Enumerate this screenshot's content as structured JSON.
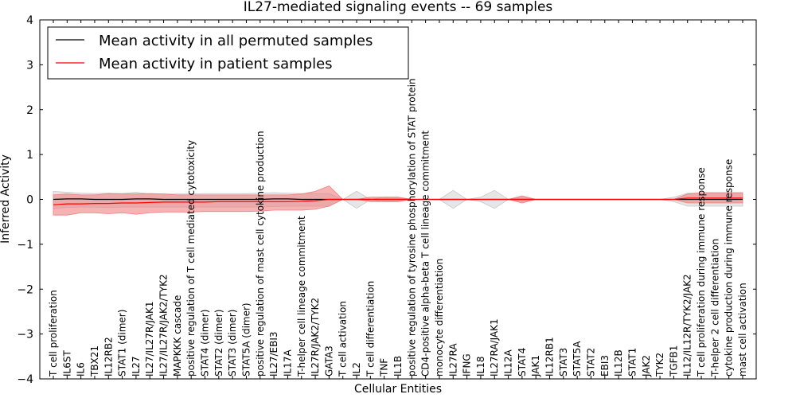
{
  "chart_data": {
    "type": "line",
    "title": "IL27-mediated signaling events -- 69 samples",
    "xlabel": "Cellular Entities",
    "ylabel": "Inferred Activity",
    "ylim": [
      -4,
      4
    ],
    "yticks": [
      -4,
      -3,
      -2,
      -1,
      0,
      1,
      2,
      3,
      4
    ],
    "ytick_labels": [
      "−4",
      "−3",
      "−2",
      "−1",
      "0",
      "1",
      "2",
      "3",
      "4"
    ],
    "legend_position": "top-left",
    "categories": [
      "T cell proliferation",
      "IL6ST",
      "IL6",
      "TBX21",
      "IL12RB2",
      "STAT1 (dimer)",
      "IL27",
      "IL27/IL27R/JAK1",
      "IL27/IL27R/JAK2/TYK2",
      "MAPKKK cascade",
      "positive regulation of T cell mediated cytotoxicity",
      "STAT4 (dimer)",
      "STAT2 (dimer)",
      "STAT3 (dimer)",
      "STAT5A (dimer)",
      "positive regulation of mast cell cytokine production",
      "IL27/EBI3",
      "IL17A",
      "T-helper cell lineage commitment",
      "IL27R/JAK2/TYK2",
      "GATA3",
      "T cell activation",
      "IL2",
      "T cell differentiation",
      "TNF",
      "IL1B",
      "positive regulation of tyrosine phosphorylation of STAT protein",
      "CD4-positive alpha-beta T cell lineage commitment",
      "monocyte differentiation",
      "IL27RA",
      "IFNG",
      "IL18",
      "IL27RA/JAK1",
      "IL12A",
      "STAT4",
      "JAK1",
      "IL12RB1",
      "STAT3",
      "STAT5A",
      "STAT2",
      "EBI3",
      "IL12B",
      "STAT1",
      "JAK2",
      "TYK2",
      "TGFB1",
      "IL12/IL12R/TYK2/JAK2",
      "T cell proliferation during immune response",
      "T-helper 2 cell differentiation",
      "cytokine production during immune response",
      "mast cell activation"
    ],
    "series": [
      {
        "name": "Mean activity in all permuted samples",
        "color": "#000000",
        "band_color": "#c8c8c8",
        "values": [
          0.0,
          0.01,
          0.01,
          0.0,
          0.0,
          0.0,
          0.01,
          0.01,
          0.0,
          0.0,
          0.0,
          0.0,
          0.0,
          0.0,
          0.0,
          0.0,
          0.01,
          0.01,
          0.0,
          0.0,
          0.0,
          0.0,
          0.0,
          0.0,
          0.0,
          0.0,
          0.0,
          0.0,
          0.0,
          0.0,
          0.0,
          0.0,
          0.0,
          0.0,
          0.0,
          0.0,
          0.0,
          0.0,
          0.0,
          0.0,
          0.0,
          0.0,
          0.0,
          0.0,
          0.0,
          0.0,
          0.0,
          0.0,
          0.0,
          0.0,
          0.0
        ],
        "lower": [
          -0.2,
          -0.18,
          -0.17,
          -0.17,
          -0.18,
          -0.17,
          -0.17,
          -0.17,
          -0.17,
          -0.17,
          -0.17,
          -0.17,
          -0.17,
          -0.17,
          -0.17,
          -0.17,
          -0.16,
          -0.15,
          -0.15,
          -0.15,
          -0.15,
          0.0,
          -0.2,
          0.0,
          -0.05,
          -0.05,
          0.0,
          0.0,
          0.0,
          -0.2,
          0.0,
          -0.05,
          -0.2,
          0.0,
          -0.05,
          0.0,
          0.0,
          0.0,
          0.0,
          0.0,
          0.0,
          0.0,
          0.0,
          0.0,
          0.0,
          -0.05,
          -0.15,
          -0.15,
          -0.15,
          -0.15,
          -0.15
        ],
        "upper": [
          0.18,
          0.16,
          0.14,
          0.13,
          0.14,
          0.13,
          0.16,
          0.12,
          0.12,
          0.12,
          0.12,
          0.13,
          0.13,
          0.13,
          0.13,
          0.14,
          0.15,
          0.14,
          0.13,
          0.13,
          0.13,
          0.0,
          0.18,
          0.0,
          0.05,
          0.05,
          0.0,
          0.0,
          0.0,
          0.2,
          0.0,
          0.05,
          0.2,
          0.0,
          0.05,
          0.0,
          0.0,
          0.0,
          0.0,
          0.0,
          0.0,
          0.0,
          0.0,
          0.0,
          0.0,
          0.05,
          0.14,
          0.14,
          0.14,
          0.14,
          0.14
        ]
      },
      {
        "name": "Mean activity in patient samples",
        "color": "#ff0000",
        "band_color": "#f08080",
        "values": [
          -0.12,
          -0.1,
          -0.1,
          -0.09,
          -0.09,
          -0.08,
          -0.08,
          -0.07,
          -0.06,
          -0.06,
          -0.06,
          -0.06,
          -0.05,
          -0.05,
          -0.05,
          -0.05,
          -0.05,
          -0.05,
          -0.04,
          -0.03,
          0.0,
          0.0,
          0.0,
          0.0,
          0.0,
          0.0,
          0.0,
          0.0,
          0.0,
          0.0,
          0.0,
          0.0,
          0.0,
          0.0,
          0.0,
          0.0,
          0.0,
          0.0,
          0.0,
          0.0,
          0.0,
          0.0,
          0.0,
          0.0,
          0.0,
          0.0,
          0.03,
          0.03,
          0.03,
          0.03,
          0.03
        ],
        "lower": [
          -0.35,
          -0.35,
          -0.3,
          -0.3,
          -0.32,
          -0.3,
          -0.33,
          -0.3,
          -0.28,
          -0.28,
          -0.28,
          -0.27,
          -0.27,
          -0.27,
          -0.27,
          -0.26,
          -0.24,
          -0.24,
          -0.24,
          -0.22,
          -0.15,
          0.0,
          0.0,
          -0.05,
          -0.05,
          -0.05,
          0.0,
          0.0,
          0.0,
          0.0,
          0.0,
          0.0,
          0.0,
          0.0,
          -0.08,
          0.0,
          0.0,
          0.0,
          0.0,
          0.0,
          0.0,
          0.0,
          0.0,
          0.0,
          0.0,
          0.0,
          -0.08,
          -0.08,
          -0.08,
          -0.08,
          -0.08
        ],
        "upper": [
          0.1,
          0.12,
          0.1,
          0.1,
          0.13,
          0.12,
          0.12,
          0.13,
          0.12,
          0.1,
          0.1,
          0.1,
          0.1,
          0.1,
          0.1,
          0.1,
          0.1,
          0.1,
          0.12,
          0.18,
          0.3,
          0.0,
          0.0,
          0.05,
          0.05,
          0.05,
          0.0,
          0.0,
          0.0,
          0.0,
          0.0,
          0.0,
          0.0,
          0.0,
          0.08,
          0.0,
          0.0,
          0.0,
          0.0,
          0.0,
          0.0,
          0.0,
          0.0,
          0.0,
          0.0,
          0.0,
          0.12,
          0.15,
          0.15,
          0.15,
          0.15
        ]
      }
    ]
  }
}
